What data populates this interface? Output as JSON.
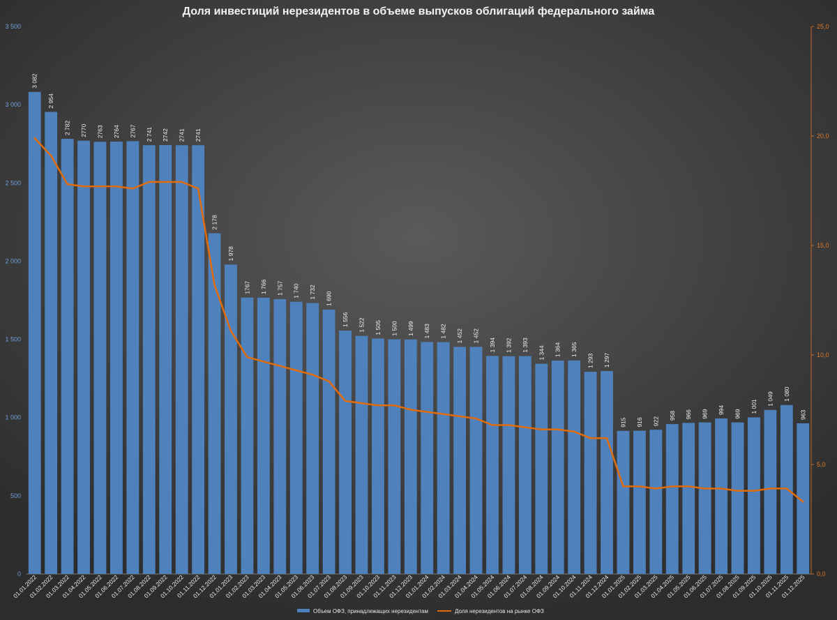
{
  "chart_data": {
    "type": "bar",
    "title": "Доля инвестиций нерезидентов в объеме выпусков облигаций федерального займа",
    "categories": [
      "01.01.2022",
      "01.02.2022",
      "01.03.2022",
      "01.04.2022",
      "01.05.2022",
      "01.06.2022",
      "01.07.2022",
      "01.08.2022",
      "01.09.2022",
      "01.10.2022",
      "01.11.2022",
      "01.12.2022",
      "01.01.2023",
      "01.02.2023",
      "01.03.2023",
      "01.04.2023",
      "01.05.2023",
      "01.06.2023",
      "01.07.2023",
      "01.08.2023",
      "01.09.2023",
      "01.10.2023",
      "01.11.2023",
      "01.12.2023",
      "01.01.2024",
      "01.02.2024",
      "01.03.2024",
      "01.04.2024",
      "01.05.2024",
      "01.06.2024",
      "01.07.2024",
      "01.08.2024",
      "01.09.2024",
      "01.10.2024",
      "01.11.2024",
      "01.12.2024",
      "01.01.2025",
      "01.02.2025",
      "01.03.2025",
      "01.04.2025",
      "01.05.2025",
      "01.06.2025",
      "01.07.2025",
      "01.08.2025",
      "01.09.2025",
      "01.10.2025",
      "01.11.2025",
      "01.12.2025"
    ],
    "series": [
      {
        "name": "Объем ОФЗ, принадлежащих нерезидентам",
        "type": "bar",
        "axis": "left",
        "color": "#4f81bd",
        "values": [
          3082,
          2954,
          2782,
          2770,
          2763,
          2764,
          2767,
          2741,
          2742,
          2741,
          2741,
          2178,
          1978,
          1767,
          1766,
          1757,
          1740,
          1732,
          1690,
          1556,
          1522,
          1505,
          1500,
          1499,
          1483,
          1482,
          1452,
          1452,
          1394,
          1392,
          1393,
          1344,
          1364,
          1365,
          1293,
          1297,
          915,
          916,
          922,
          958,
          966,
          969,
          994,
          969,
          1001,
          1049,
          1080,
          963
        ],
        "labels": [
          "3 082",
          "2 954",
          "2 782",
          "2770",
          "2763",
          "2764",
          "2767",
          "2 741",
          "2742",
          "2741",
          "2741",
          "2 178",
          "1 978",
          "1767",
          "1 766",
          "1 757",
          "1 740",
          "1 732",
          "1 690",
          "1 556",
          "1 522",
          "1 505",
          "1 500",
          "1 499",
          "1 483",
          "1 482",
          "1 452",
          "1 452",
          "1 394",
          "1 392",
          "1 393",
          "1 344",
          "1 364",
          "1 365",
          "1 293",
          "1 297",
          "915",
          "916",
          "922",
          "958",
          "966",
          "969",
          "994",
          "969",
          "1 001",
          "1 049",
          "1 080",
          "963"
        ]
      },
      {
        "name": "Доля нерезидентов на рынке ОФЗ",
        "type": "line",
        "axis": "right",
        "color": "#e36c0a",
        "values": [
          19.9,
          19.1,
          17.8,
          17.7,
          17.7,
          17.7,
          17.6,
          17.9,
          17.9,
          17.9,
          17.6,
          13.2,
          11.1,
          9.9,
          9.7,
          9.5,
          9.3,
          9.1,
          8.8,
          7.9,
          7.8,
          7.7,
          7.7,
          7.5,
          7.4,
          7.3,
          7.2,
          7.1,
          6.8,
          6.8,
          6.7,
          6.6,
          6.6,
          6.5,
          6.2,
          6.2,
          4.0,
          4.0,
          3.9,
          4.0,
          4.0,
          3.9,
          3.9,
          3.8,
          3.8,
          3.9,
          3.9,
          3.3
        ]
      }
    ],
    "y_left": {
      "min": 0,
      "max": 3500,
      "ticks": [
        "0",
        "500",
        "1 000",
        "1 500",
        "2 000",
        "2 500",
        "3 000",
        "3 500"
      ]
    },
    "y_right": {
      "min": 0,
      "max": 25,
      "ticks": [
        "0,0",
        "5,0",
        "10,0",
        "15,0",
        "20,0",
        "25,0"
      ]
    },
    "legend_position": "bottom",
    "grid": false
  }
}
